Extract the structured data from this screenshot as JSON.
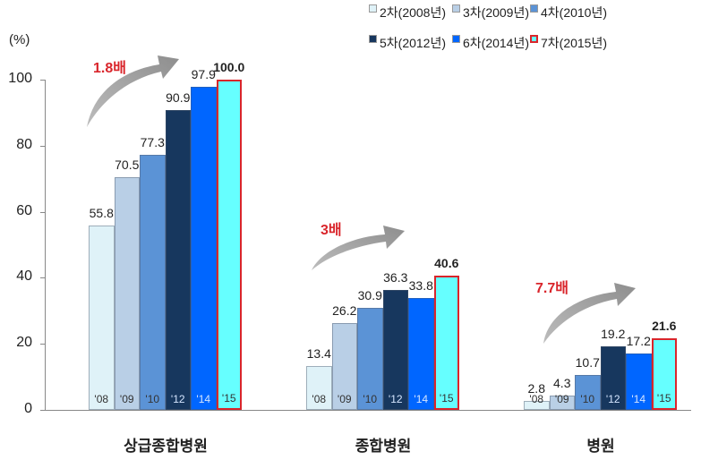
{
  "chart_data": {
    "type": "bar",
    "title": "",
    "ylabel": "(%)",
    "xlabel": "",
    "ylim": [
      0,
      100
    ],
    "yticks": [
      0,
      20,
      40,
      60,
      80,
      100
    ],
    "grid": false,
    "legend_position": "top-right",
    "categories": [
      "상급종합병원",
      "종합병원",
      "병원"
    ],
    "year_labels": [
      "'08",
      "'09",
      "'10",
      "'12",
      "'14",
      "'15"
    ],
    "series": [
      {
        "name": "2차(2008년)",
        "color": "#dff2f8",
        "values": [
          55.8,
          13.4,
          2.8
        ]
      },
      {
        "name": "3차(2009년)",
        "color": "#b9cfe6",
        "values": [
          70.5,
          26.2,
          4.3
        ]
      },
      {
        "name": "4차(2010년)",
        "color": "#5b93d6",
        "values": [
          77.3,
          30.9,
          10.7
        ]
      },
      {
        "name": "5차(2012년)",
        "color": "#17375e",
        "values": [
          90.9,
          36.3,
          19.2
        ]
      },
      {
        "name": "6차(2014년)",
        "color": "#0066ff",
        "values": [
          97.9,
          33.8,
          17.2
        ]
      },
      {
        "name": "7차(2015년)",
        "color": "#66ffff",
        "border": "#d9252b",
        "values": [
          100.0,
          40.6,
          21.6
        ]
      }
    ],
    "annotations": [
      {
        "category": "상급종합병원",
        "text": "1.8배"
      },
      {
        "category": "종합병원",
        "text": "3배"
      },
      {
        "category": "병원",
        "text": "7.7배"
      }
    ]
  },
  "axis": {
    "unit": "(%)",
    "ticks": [
      "0",
      "20",
      "40",
      "60",
      "80",
      "100"
    ]
  },
  "legend": [
    "2차(2008년)",
    "3차(2009년)",
    "4차(2010년)",
    "5차(2012년)",
    "6차(2014년)",
    "7차(2015년)"
  ],
  "groups": [
    {
      "label": "상급종합병원",
      "multiplier": "1.8배",
      "values": [
        "55.8",
        "70.5",
        "77.3",
        "90.9",
        "97.9",
        "100.0"
      ]
    },
    {
      "label": "종합병원",
      "multiplier": "3배",
      "values": [
        "13.4",
        "26.2",
        "30.9",
        "36.3",
        "33.8",
        "40.6"
      ]
    },
    {
      "label": "병원",
      "multiplier": "7.7배",
      "values": [
        "2.8",
        "4.3",
        "10.7",
        "19.2",
        "17.2",
        "21.6"
      ]
    }
  ],
  "years": [
    "'08",
    "'09",
    "'10",
    "'12",
    "'14",
    "'15"
  ]
}
